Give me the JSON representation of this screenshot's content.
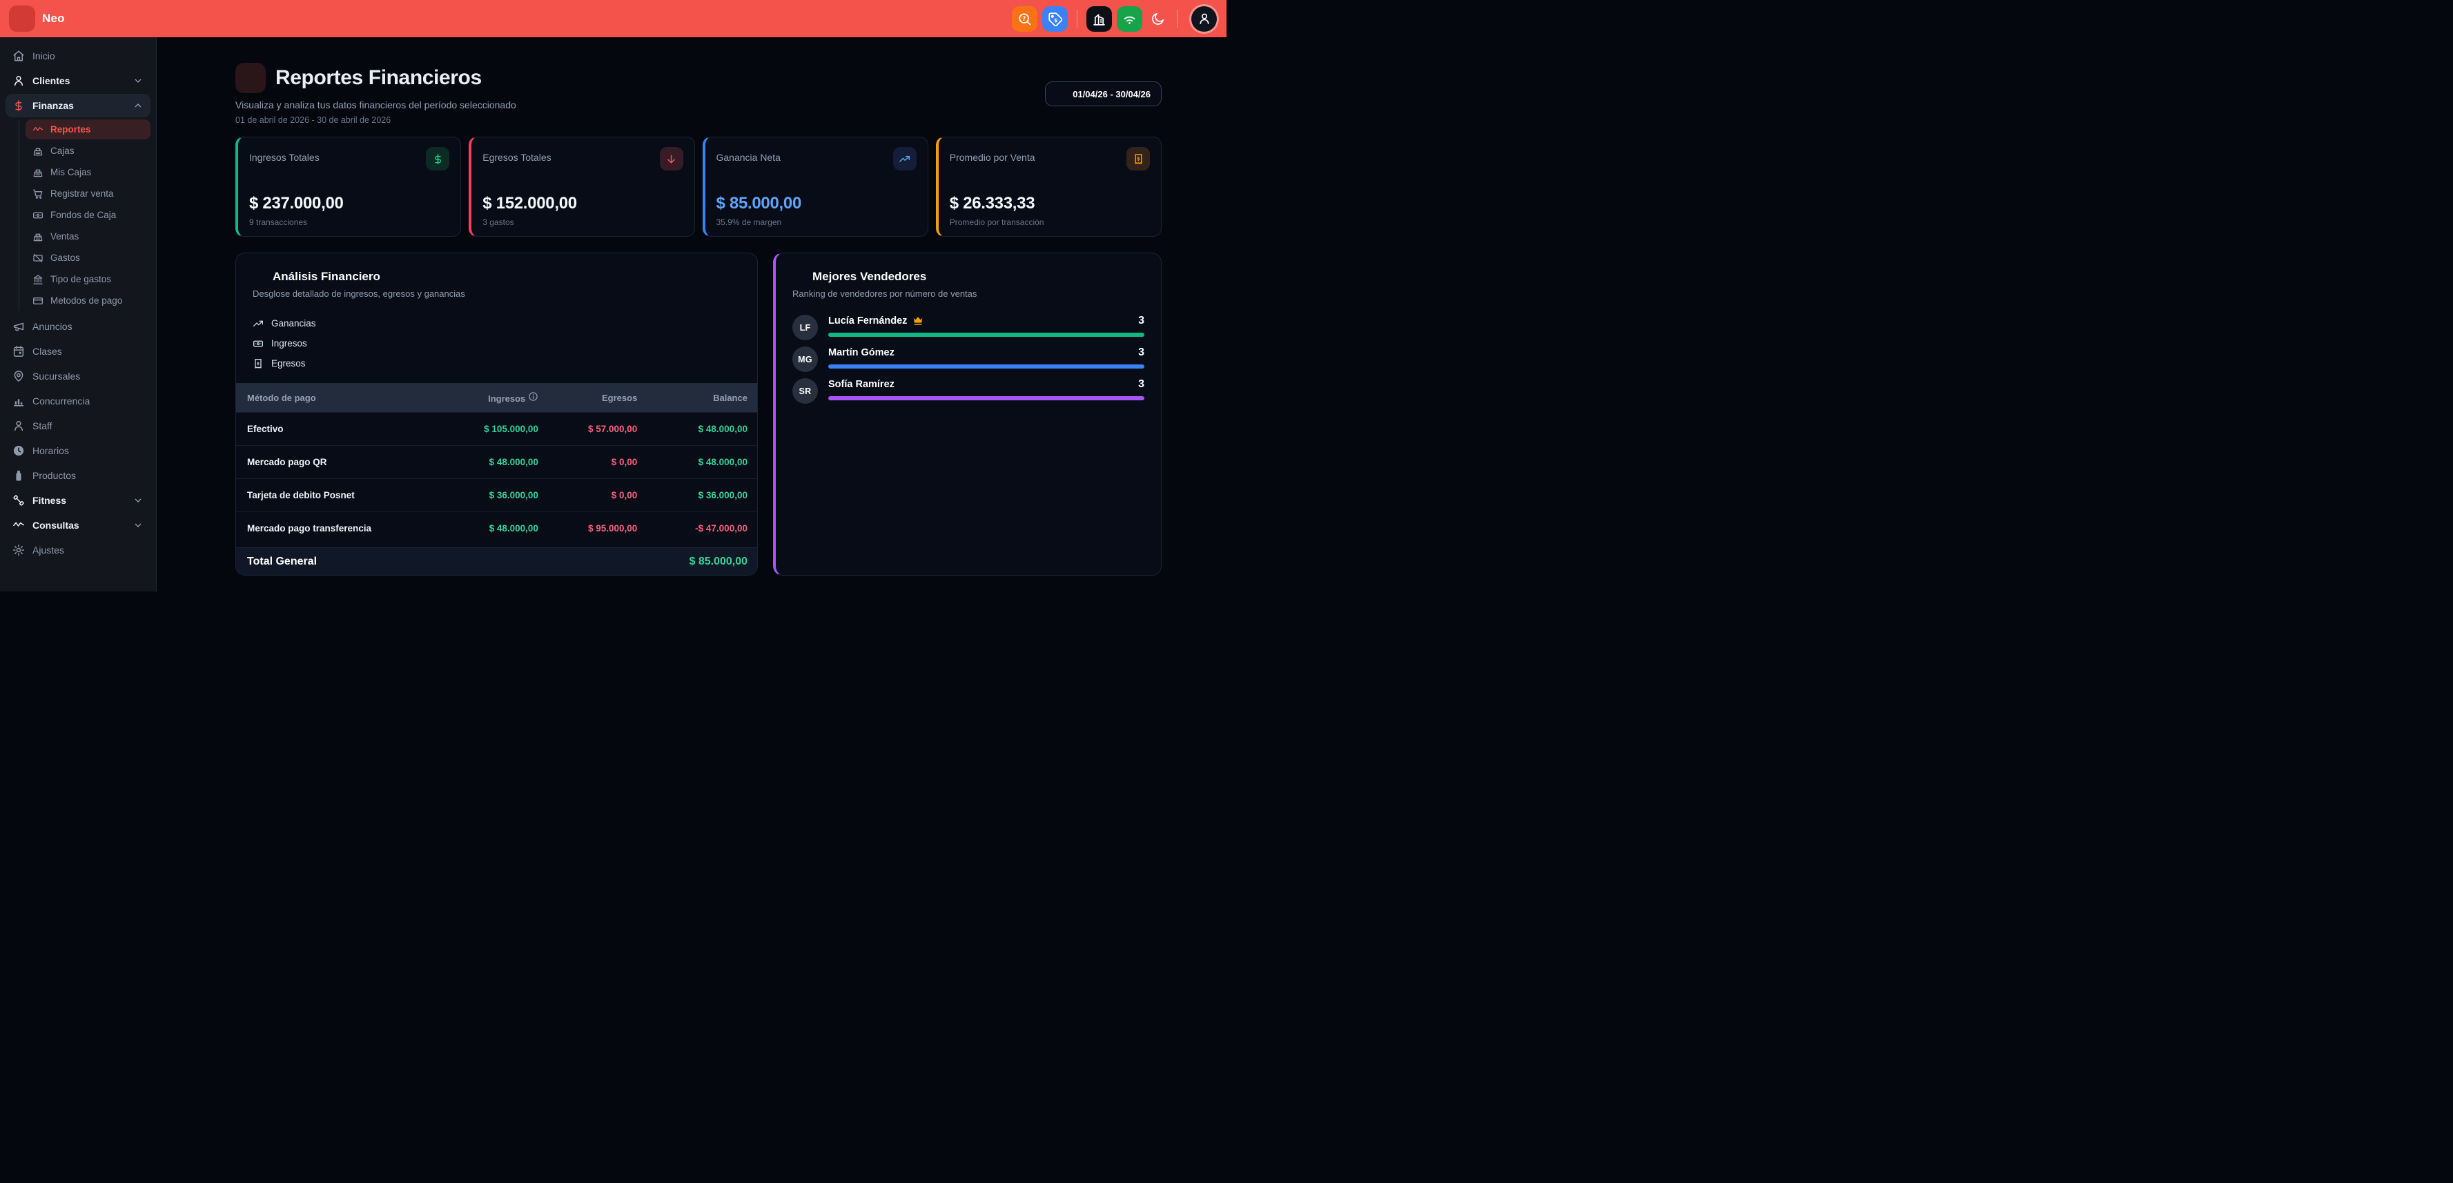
{
  "topbar": {
    "brand": "Neo",
    "logo_icon": "dumbbell",
    "actions": [
      {
        "type": "chip",
        "name": "help-search-button",
        "icon": "search-help",
        "bg": "#f97316"
      },
      {
        "type": "chip",
        "name": "pricing-tag-button",
        "icon": "tag",
        "bg": "#3b82f6"
      },
      {
        "type": "divider"
      },
      {
        "type": "chip",
        "name": "facility-button",
        "icon": "building",
        "bg": "#0c1019"
      },
      {
        "type": "chip",
        "name": "network-status-button",
        "icon": "wifi",
        "bg": "#17a34a"
      },
      {
        "type": "plain",
        "name": "dark-mode-toggle",
        "icon": "moon"
      },
      {
        "type": "divider"
      },
      {
        "type": "avatar",
        "name": "user-menu-button",
        "icon": "person"
      }
    ]
  },
  "sidebar": {
    "items": [
      {
        "label": "Inicio",
        "icon": "home"
      },
      {
        "label": "Clientes",
        "icon": "user",
        "chevron": "down",
        "group": true
      },
      {
        "label": "Finanzas",
        "icon": "dollar-sign",
        "chevron": "up",
        "group": true,
        "active_parent": true,
        "children": [
          {
            "label": "Reportes",
            "icon": "activity",
            "active": true
          },
          {
            "label": "Cajas",
            "icon": "cash-register"
          },
          {
            "label": "Mis Cajas",
            "icon": "cash-register"
          },
          {
            "label": "Registrar venta",
            "icon": "shopping-cart"
          },
          {
            "label": "Fondos de Caja",
            "icon": "banknote"
          },
          {
            "label": "Ventas",
            "icon": "cash-register"
          },
          {
            "label": "Gastos",
            "icon": "banknote-x"
          },
          {
            "label": "Tipo de gastos",
            "icon": "landmark"
          },
          {
            "label": "Metodos de pago",
            "icon": "credit-card"
          }
        ]
      },
      {
        "label": "Anuncios",
        "icon": "megaphone"
      },
      {
        "label": "Clases",
        "icon": "calendar"
      },
      {
        "label": "Sucursales",
        "icon": "map-pin"
      },
      {
        "label": "Concurrencia",
        "icon": "bar-chart"
      },
      {
        "label": "Staff",
        "icon": "user"
      },
      {
        "label": "Horarios",
        "icon": "clock"
      },
      {
        "label": "Productos",
        "icon": "bottle"
      },
      {
        "label": "Fitness",
        "icon": "dumbbell",
        "chevron": "down",
        "group": true
      },
      {
        "label": "Consultas",
        "icon": "activity",
        "chevron": "down",
        "group": true
      },
      {
        "label": "Ajustes",
        "icon": "settings"
      }
    ]
  },
  "page": {
    "title": "Reportes Financieros",
    "subtitle": "Visualiza y analiza tus datos financieros del período seleccionado",
    "period": "01 de abril de 2026 - 30 de abril de 2026",
    "date_range": "01/04/26 - 30/04/26"
  },
  "stats": [
    {
      "label": "Ingresos Totales",
      "value": "$ 237.000,00",
      "note": "9 transacciones",
      "icon": "dollar-sign",
      "accent": "#10b981",
      "chip_bg": "#0c2b25",
      "chip_fg": "#10d48e",
      "value_color": "#f4f7fb"
    },
    {
      "label": "Egresos Totales",
      "value": "$ 152.000,00",
      "note": "3 gastos",
      "icon": "arrow-down",
      "accent": "#f43f5e",
      "chip_bg": "#371c25",
      "chip_fg": "#f4566c",
      "value_color": "#f4f7fb"
    },
    {
      "label": "Ganancia Neta",
      "value": "$ 85.000,00",
      "note": "35.9% de margen",
      "icon": "trending-up",
      "accent": "#3b82f6",
      "chip_bg": "#141e38",
      "chip_fg": "#60a5fa",
      "value_color": "#60a5fa"
    },
    {
      "label": "Promedio por Venta",
      "value": "$ 26.333,33",
      "note": "Promedio por transacción",
      "icon": "receipt-dollar",
      "accent": "#f59e0b",
      "chip_bg": "#33231a",
      "chip_fg": "#f59e0b",
      "value_color": "#f4f7fb"
    }
  ],
  "analysis": {
    "title": "Análisis Financiero",
    "subtitle": "Desglose detallado de ingresos, egresos y ganancias",
    "header_icon": "columns-chart",
    "legend": [
      {
        "label": "Ganancias",
        "icon": "trending-up"
      },
      {
        "label": "Ingresos",
        "icon": "banknote"
      },
      {
        "label": "Egresos",
        "icon": "receipt-dollar"
      }
    ],
    "table": {
      "columns": [
        "Método de pago",
        "Ingresos",
        "Egresos",
        "Balance"
      ],
      "rows": [
        {
          "method": "Efectivo",
          "ingresos": "$ 105.000,00",
          "egresos": "$ 57.000,00",
          "balance": "$ 48.000,00"
        },
        {
          "method": "Mercado pago QR",
          "ingresos": "$ 48.000,00",
          "egresos": "$ 0,00",
          "balance": "$ 48.000,00"
        },
        {
          "method": "Tarjeta de debito Posnet",
          "ingresos": "$ 36.000,00",
          "egresos": "$ 0,00",
          "balance": "$ 36.000,00"
        },
        {
          "method": "Mercado pago transferencia",
          "ingresos": "$ 48.000,00",
          "egresos": "$ 95.000,00",
          "balance": "-$ 47.000,00"
        }
      ],
      "total_label": "Total General",
      "total_value": "$ 85.000,00",
      "colors": {
        "ingresos": "#34d399",
        "egresos": "#fb5e7e",
        "balance_pos": "#34d399",
        "balance_neg": "#fb5e7e"
      }
    }
  },
  "vendors": {
    "title": "Mejores Vendedores",
    "subtitle": "Ranking de vendedores por número de ventas",
    "header_icon": "trophy",
    "accent": "#a855f7",
    "items": [
      {
        "initials": "LF",
        "name": "Lucía Fernández",
        "crown": true,
        "count": "3",
        "bar_color": "#10b981",
        "bar_pct": 100
      },
      {
        "initials": "MG",
        "name": "Martín Gómez",
        "crown": false,
        "count": "3",
        "bar_color": "#3b82f6",
        "bar_pct": 100
      },
      {
        "initials": "SR",
        "name": "Sofía Ramírez",
        "crown": false,
        "count": "3",
        "bar_color": "#a855f7",
        "bar_pct": 100
      }
    ]
  }
}
